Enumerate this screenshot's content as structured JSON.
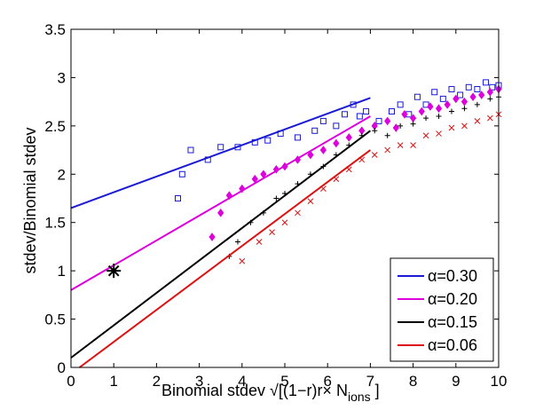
{
  "chart_data": {
    "type": "line",
    "xlabel": "Binomial stdev √[(1−r)r× N",
    "xlabel_sub": "ions",
    "xlabel_tail": " ]",
    "ylabel": "stdev/Binomial stdev",
    "xlim": [
      0,
      10
    ],
    "ylim": [
      0,
      3.5
    ],
    "xticks": [
      "0",
      "1",
      "2",
      "3",
      "4",
      "5",
      "6",
      "7",
      "8",
      "9",
      "10"
    ],
    "yticks": [
      "0",
      "0.5",
      "1",
      "1.5",
      "2",
      "2.5",
      "3",
      "3.5"
    ],
    "xtick_values": [
      0,
      1,
      2,
      3,
      4,
      5,
      6,
      7,
      8,
      9,
      10
    ],
    "ytick_values": [
      0,
      0.5,
      1,
      1.5,
      2,
      2.5,
      3,
      3.5
    ],
    "grid": false,
    "legend_position": "bottom-right",
    "reference_point": {
      "x": 1,
      "y": 1,
      "marker": "asterisk",
      "color": "#000000"
    },
    "series": [
      {
        "name": "α=0.30",
        "color": "#1a1ad6",
        "line": [
          [
            0,
            1.65
          ],
          [
            7,
            2.79
          ]
        ],
        "marker": "square",
        "points": [
          [
            2.5,
            1.75
          ],
          [
            2.6,
            2.0
          ],
          [
            2.8,
            2.25
          ],
          [
            3.2,
            2.15
          ],
          [
            3.5,
            2.28
          ],
          [
            3.9,
            2.28
          ],
          [
            4.3,
            2.33
          ],
          [
            4.6,
            2.35
          ],
          [
            4.9,
            2.42
          ],
          [
            5.3,
            2.38
          ],
          [
            5.7,
            2.45
          ],
          [
            5.9,
            2.55
          ],
          [
            6.2,
            2.5
          ],
          [
            6.4,
            2.62
          ],
          [
            6.6,
            2.72
          ],
          [
            6.75,
            2.6
          ],
          [
            6.9,
            2.65
          ],
          [
            7.2,
            2.55
          ],
          [
            7.5,
            2.65
          ],
          [
            7.7,
            2.72
          ],
          [
            7.9,
            2.62
          ],
          [
            8.1,
            2.8
          ],
          [
            8.3,
            2.72
          ],
          [
            8.5,
            2.85
          ],
          [
            8.7,
            2.78
          ],
          [
            8.9,
            2.88
          ],
          [
            9.1,
            2.82
          ],
          [
            9.3,
            2.9
          ],
          [
            9.5,
            2.88
          ],
          [
            9.7,
            2.95
          ],
          [
            9.85,
            2.9
          ],
          [
            10.0,
            2.92
          ]
        ]
      },
      {
        "name": "α=0.20",
        "color": "#dd00dd",
        "line": [
          [
            0,
            0.8
          ],
          [
            7,
            2.6
          ]
        ],
        "marker": "diamond",
        "points": [
          [
            3.3,
            1.35
          ],
          [
            3.5,
            1.6
          ],
          [
            3.7,
            1.78
          ],
          [
            4.0,
            1.85
          ],
          [
            4.3,
            1.95
          ],
          [
            4.5,
            2.0
          ],
          [
            4.8,
            2.05
          ],
          [
            5.0,
            2.08
          ],
          [
            5.3,
            2.15
          ],
          [
            5.6,
            2.2
          ],
          [
            5.9,
            2.25
          ],
          [
            6.2,
            2.32
          ],
          [
            6.5,
            2.38
          ],
          [
            6.8,
            2.45
          ],
          [
            7.1,
            2.5
          ],
          [
            7.4,
            2.55
          ],
          [
            7.6,
            2.48
          ],
          [
            7.8,
            2.62
          ],
          [
            8.0,
            2.58
          ],
          [
            8.2,
            2.65
          ],
          [
            8.4,
            2.7
          ],
          [
            8.6,
            2.68
          ],
          [
            8.8,
            2.72
          ],
          [
            9.0,
            2.78
          ],
          [
            9.2,
            2.75
          ],
          [
            9.4,
            2.8
          ],
          [
            9.6,
            2.82
          ],
          [
            9.8,
            2.85
          ],
          [
            10.0,
            2.88
          ]
        ]
      },
      {
        "name": "α=0.15",
        "color": "#000000",
        "line": [
          [
            0,
            0.1
          ],
          [
            7,
            2.45
          ]
        ],
        "marker": "plus",
        "points": [
          [
            3.7,
            1.15
          ],
          [
            3.9,
            1.3
          ],
          [
            4.2,
            1.5
          ],
          [
            4.5,
            1.6
          ],
          [
            4.8,
            1.75
          ],
          [
            5.0,
            1.8
          ],
          [
            5.3,
            1.9
          ],
          [
            5.6,
            2.0
          ],
          [
            5.9,
            2.08
          ],
          [
            6.2,
            2.2
          ],
          [
            6.5,
            2.3
          ],
          [
            6.8,
            2.4
          ],
          [
            7.1,
            2.45
          ],
          [
            7.4,
            2.4
          ],
          [
            7.7,
            2.5
          ],
          [
            8.0,
            2.52
          ],
          [
            8.3,
            2.58
          ],
          [
            8.6,
            2.6
          ],
          [
            8.9,
            2.65
          ],
          [
            9.2,
            2.68
          ],
          [
            9.5,
            2.72
          ],
          [
            9.8,
            2.78
          ],
          [
            10.0,
            2.8
          ]
        ]
      },
      {
        "name": "α=0.06",
        "color": "#dd1111",
        "line": [
          [
            0.2,
            0
          ],
          [
            7,
            2.25
          ]
        ],
        "marker": "x",
        "points": [
          [
            4.0,
            1.1
          ],
          [
            4.4,
            1.3
          ],
          [
            4.7,
            1.4
          ],
          [
            5.0,
            1.5
          ],
          [
            5.3,
            1.6
          ],
          [
            5.6,
            1.72
          ],
          [
            5.9,
            1.85
          ],
          [
            6.2,
            1.95
          ],
          [
            6.5,
            2.05
          ],
          [
            6.8,
            2.15
          ],
          [
            7.1,
            2.2
          ],
          [
            7.4,
            2.25
          ],
          [
            7.7,
            2.3
          ],
          [
            8.0,
            2.3
          ],
          [
            8.3,
            2.4
          ],
          [
            8.6,
            2.42
          ],
          [
            8.9,
            2.48
          ],
          [
            9.2,
            2.5
          ],
          [
            9.5,
            2.55
          ],
          [
            9.8,
            2.58
          ],
          [
            10.0,
            2.62
          ]
        ]
      }
    ]
  }
}
